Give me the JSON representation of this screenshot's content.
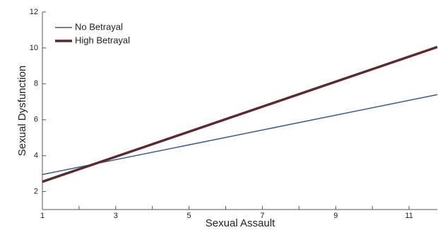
{
  "chart_data": {
    "type": "line",
    "x_label": "Sexual Assault",
    "y_label": "Sexual Dysfunction",
    "x": [
      1,
      11.77
    ],
    "series": [
      {
        "name": "No Betrayal",
        "color": "#3b5b8f",
        "width": 1.5,
        "values": [
          2.95,
          7.4
        ]
      },
      {
        "name": "High Betrayal",
        "color": "#5b2a2e",
        "width": 3.5,
        "values": [
          2.55,
          10.05
        ]
      }
    ],
    "xlim": [
      1,
      11.77
    ],
    "ylim": [
      1,
      12
    ],
    "xticks": [
      1,
      3,
      5,
      7,
      9,
      11
    ],
    "xminorticks": [
      2,
      4,
      6,
      8,
      10
    ],
    "yticks": [
      2,
      4,
      6,
      8,
      10,
      12
    ],
    "legend": "top-left"
  }
}
